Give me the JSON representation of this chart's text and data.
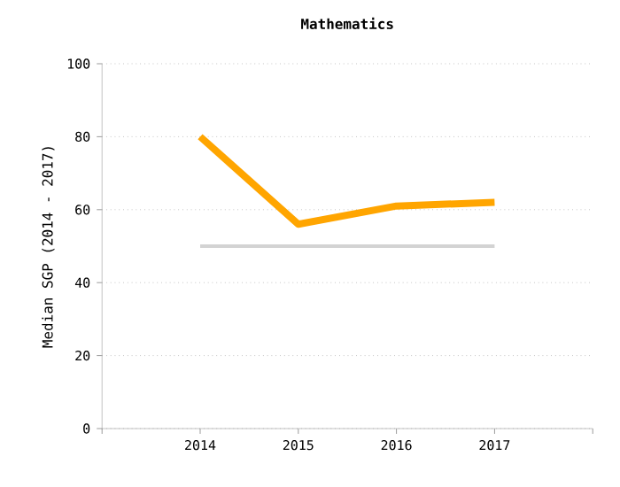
{
  "chart_data": {
    "type": "line",
    "title": "Mathematics",
    "ylabel": "Median SGP (2014 - 2017)",
    "categories": [
      "2014",
      "2015",
      "2016",
      "2017"
    ],
    "series": [
      {
        "color": "#ffa500",
        "values": [
          80,
          56,
          61,
          62
        ]
      },
      {
        "color": "#d3d3d3",
        "values": [
          50,
          50,
          50,
          50
        ]
      }
    ],
    "ylim": [
      0,
      100
    ],
    "yticks": [
      0,
      20,
      40,
      60,
      80,
      100
    ],
    "grid": "y",
    "marker": "none",
    "line_style": "solid"
  }
}
